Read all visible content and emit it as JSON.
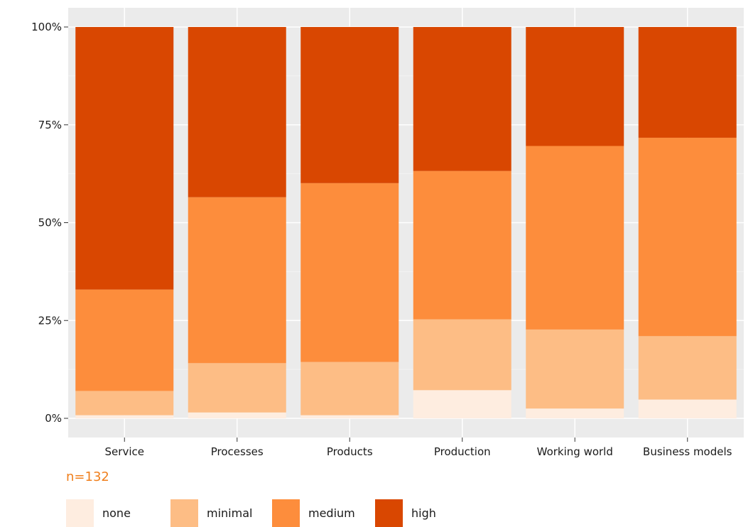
{
  "chart_data": {
    "type": "bar",
    "stacked": true,
    "percent": true,
    "categories": [
      "Service",
      "Processes",
      "Products",
      "Production",
      "Working world",
      "Business models"
    ],
    "series": [
      {
        "name": "none",
        "color": "#feede0",
        "values": [
          0.8,
          1.5,
          0.8,
          7.2,
          2.5,
          4.8
        ]
      },
      {
        "name": "minimal",
        "color": "#fdbd85",
        "values": [
          6.2,
          12.6,
          13.6,
          18.1,
          20.2,
          16.2
        ]
      },
      {
        "name": "medium",
        "color": "#fd8d3c",
        "values": [
          25.9,
          42.4,
          45.7,
          37.9,
          46.9,
          50.7
        ]
      },
      {
        "name": "high",
        "color": "#d94701",
        "values": [
          67.1,
          43.5,
          39.9,
          36.8,
          30.4,
          28.3
        ]
      }
    ],
    "yticks": [
      "0%",
      "25%",
      "50%",
      "75%",
      "100%"
    ],
    "ylim": [
      0,
      100
    ],
    "grid": true,
    "legend_position": "bottom",
    "background": "#ebebeb"
  },
  "note": "n=132"
}
